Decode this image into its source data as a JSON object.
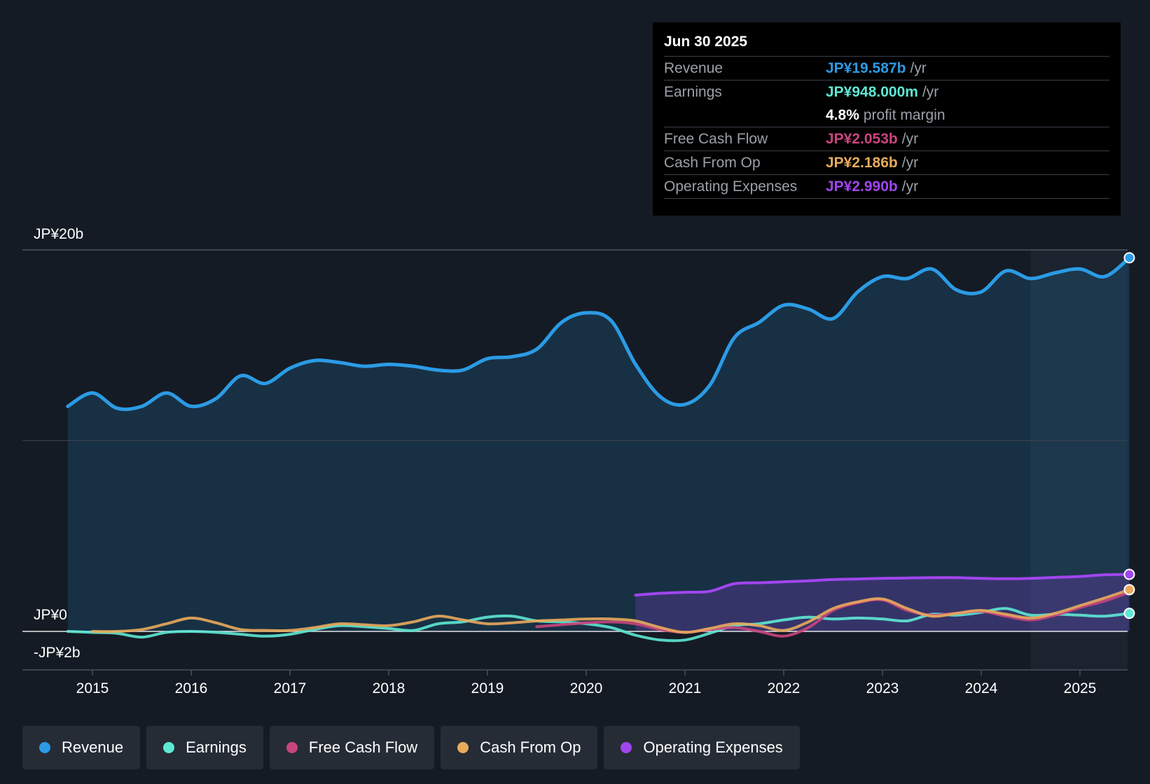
{
  "tooltip": {
    "date": "Jun 30 2025",
    "rows": [
      {
        "label": "Revenue",
        "value": "JP¥19.587b",
        "unit": "/yr",
        "color": "#2b9be5"
      },
      {
        "label": "Earnings",
        "value": "JP¥948.000m",
        "unit": "/yr",
        "color": "#5ee8d4"
      },
      {
        "label": "",
        "value": "4.8%",
        "unit": "profit margin",
        "color": "#ffffff"
      },
      {
        "label": "Free Cash Flow",
        "value": "JP¥2.053b",
        "unit": "/yr",
        "color": "#c9457e"
      },
      {
        "label": "Cash From Op",
        "value": "JP¥2.186b",
        "unit": "/yr",
        "color": "#e8aa5c"
      },
      {
        "label": "Operating Expenses",
        "value": "JP¥2.990b",
        "unit": "/yr",
        "color": "#a046ee"
      }
    ]
  },
  "legend": [
    {
      "label": "Revenue",
      "color": "#2b9be5"
    },
    {
      "label": "Earnings",
      "color": "#5ee8d4"
    },
    {
      "label": "Free Cash Flow",
      "color": "#c9457e"
    },
    {
      "label": "Cash From Op",
      "color": "#e8aa5c"
    },
    {
      "label": "Operating Expenses",
      "color": "#a046ee"
    }
  ],
  "chart_data": {
    "type": "line",
    "title": "",
    "y_labels": [
      {
        "label": "JP¥20b",
        "value": 20
      },
      {
        "label": "JP¥0",
        "value": 0
      },
      {
        "label": "-JP¥2b",
        "value": -2
      }
    ],
    "ylim": [
      -2,
      20
    ],
    "xlim": [
      2014.5,
      2025.5
    ],
    "x_ticks": [
      2015,
      2016,
      2017,
      2018,
      2019,
      2020,
      2021,
      2022,
      2023,
      2024,
      2025
    ],
    "forecast_start": 2024.5,
    "series": [
      {
        "name": "Revenue",
        "color": "#2b9be5",
        "fill": true,
        "end_marker": true,
        "points": [
          [
            2014.75,
            11.8
          ],
          [
            2015.0,
            12.5
          ],
          [
            2015.25,
            11.7
          ],
          [
            2015.5,
            11.8
          ],
          [
            2015.75,
            12.5
          ],
          [
            2016.0,
            11.8
          ],
          [
            2016.25,
            12.2
          ],
          [
            2016.5,
            13.4
          ],
          [
            2016.75,
            13.0
          ],
          [
            2017.0,
            13.8
          ],
          [
            2017.25,
            14.2
          ],
          [
            2017.5,
            14.1
          ],
          [
            2017.75,
            13.9
          ],
          [
            2018.0,
            14.0
          ],
          [
            2018.25,
            13.9
          ],
          [
            2018.5,
            13.7
          ],
          [
            2018.75,
            13.7
          ],
          [
            2019.0,
            14.3
          ],
          [
            2019.25,
            14.4
          ],
          [
            2019.5,
            14.8
          ],
          [
            2019.75,
            16.2
          ],
          [
            2020.0,
            16.7
          ],
          [
            2020.25,
            16.3
          ],
          [
            2020.5,
            14.0
          ],
          [
            2020.75,
            12.3
          ],
          [
            2021.0,
            11.9
          ],
          [
            2021.25,
            12.9
          ],
          [
            2021.5,
            15.4
          ],
          [
            2021.75,
            16.2
          ],
          [
            2022.0,
            17.1
          ],
          [
            2022.25,
            16.9
          ],
          [
            2022.5,
            16.4
          ],
          [
            2022.75,
            17.8
          ],
          [
            2023.0,
            18.6
          ],
          [
            2023.25,
            18.5
          ],
          [
            2023.5,
            19.0
          ],
          [
            2023.75,
            17.9
          ],
          [
            2024.0,
            17.8
          ],
          [
            2024.25,
            18.9
          ],
          [
            2024.5,
            18.5
          ],
          [
            2024.75,
            18.8
          ],
          [
            2025.0,
            19.0
          ],
          [
            2025.25,
            18.6
          ],
          [
            2025.5,
            19.587
          ]
        ]
      },
      {
        "name": "Operating Expenses",
        "color": "#a046ee",
        "fill": true,
        "end_marker": true,
        "points": [
          [
            2020.5,
            1.9
          ],
          [
            2020.75,
            2.0
          ],
          [
            2021.0,
            2.05
          ],
          [
            2021.25,
            2.1
          ],
          [
            2021.5,
            2.5
          ],
          [
            2021.75,
            2.55
          ],
          [
            2022.0,
            2.6
          ],
          [
            2022.25,
            2.65
          ],
          [
            2022.5,
            2.72
          ],
          [
            2022.75,
            2.75
          ],
          [
            2023.0,
            2.78
          ],
          [
            2023.25,
            2.8
          ],
          [
            2023.5,
            2.82
          ],
          [
            2023.75,
            2.82
          ],
          [
            2024.0,
            2.78
          ],
          [
            2024.25,
            2.76
          ],
          [
            2024.5,
            2.78
          ],
          [
            2024.75,
            2.83
          ],
          [
            2025.0,
            2.88
          ],
          [
            2025.25,
            2.97
          ],
          [
            2025.5,
            2.99
          ]
        ]
      },
      {
        "name": "Earnings",
        "color": "#5ee8d4",
        "fill": false,
        "end_marker": true,
        "points": [
          [
            2014.75,
            0.0
          ],
          [
            2015.0,
            -0.05
          ],
          [
            2015.25,
            -0.1
          ],
          [
            2015.5,
            -0.3
          ],
          [
            2015.75,
            -0.05
          ],
          [
            2016.0,
            0.0
          ],
          [
            2016.25,
            -0.05
          ],
          [
            2016.5,
            -0.15
          ],
          [
            2016.75,
            -0.25
          ],
          [
            2017.0,
            -0.15
          ],
          [
            2017.25,
            0.1
          ],
          [
            2017.5,
            0.3
          ],
          [
            2017.75,
            0.25
          ],
          [
            2018.0,
            0.15
          ],
          [
            2018.25,
            0.05
          ],
          [
            2018.5,
            0.4
          ],
          [
            2018.75,
            0.5
          ],
          [
            2019.0,
            0.75
          ],
          [
            2019.25,
            0.8
          ],
          [
            2019.5,
            0.55
          ],
          [
            2019.75,
            0.5
          ],
          [
            2020.0,
            0.4
          ],
          [
            2020.25,
            0.2
          ],
          [
            2020.5,
            -0.2
          ],
          [
            2020.75,
            -0.45
          ],
          [
            2021.0,
            -0.45
          ],
          [
            2021.25,
            -0.1
          ],
          [
            2021.5,
            0.3
          ],
          [
            2021.75,
            0.4
          ],
          [
            2022.0,
            0.6
          ],
          [
            2022.25,
            0.75
          ],
          [
            2022.5,
            0.65
          ],
          [
            2022.75,
            0.7
          ],
          [
            2023.0,
            0.65
          ],
          [
            2023.25,
            0.55
          ],
          [
            2023.5,
            0.9
          ],
          [
            2023.75,
            0.85
          ],
          [
            2024.0,
            1.0
          ],
          [
            2024.25,
            1.2
          ],
          [
            2024.5,
            0.85
          ],
          [
            2024.75,
            0.9
          ],
          [
            2025.0,
            0.85
          ],
          [
            2025.25,
            0.8
          ],
          [
            2025.5,
            0.948
          ]
        ]
      },
      {
        "name": "Free Cash Flow",
        "color": "#c9457e",
        "fill": false,
        "end_marker": false,
        "points": [
          [
            2019.5,
            0.25
          ],
          [
            2019.75,
            0.35
          ],
          [
            2020.0,
            0.45
          ],
          [
            2020.25,
            0.5
          ],
          [
            2020.5,
            0.4
          ],
          [
            2020.75,
            0.1
          ],
          [
            2021.0,
            -0.05
          ],
          [
            2021.25,
            0.1
          ],
          [
            2021.5,
            0.2
          ],
          [
            2021.75,
            0.0
          ],
          [
            2022.0,
            -0.25
          ],
          [
            2022.25,
            0.2
          ],
          [
            2022.5,
            1.1
          ],
          [
            2022.75,
            1.5
          ],
          [
            2023.0,
            1.65
          ],
          [
            2023.25,
            1.1
          ],
          [
            2023.5,
            0.85
          ],
          [
            2023.75,
            0.95
          ],
          [
            2024.0,
            1.05
          ],
          [
            2024.25,
            0.8
          ],
          [
            2024.5,
            0.6
          ],
          [
            2024.75,
            0.85
          ],
          [
            2025.0,
            1.25
          ],
          [
            2025.25,
            1.6
          ],
          [
            2025.5,
            2.053
          ]
        ]
      },
      {
        "name": "Cash From Op",
        "color": "#e8aa5c",
        "fill": false,
        "end_marker": true,
        "points": [
          [
            2015.0,
            0.0
          ],
          [
            2015.25,
            0.0
          ],
          [
            2015.5,
            0.1
          ],
          [
            2015.75,
            0.4
          ],
          [
            2016.0,
            0.7
          ],
          [
            2016.25,
            0.45
          ],
          [
            2016.5,
            0.1
          ],
          [
            2016.75,
            0.05
          ],
          [
            2017.0,
            0.05
          ],
          [
            2017.25,
            0.2
          ],
          [
            2017.5,
            0.4
          ],
          [
            2017.75,
            0.35
          ],
          [
            2018.0,
            0.3
          ],
          [
            2018.25,
            0.5
          ],
          [
            2018.5,
            0.8
          ],
          [
            2018.75,
            0.6
          ],
          [
            2019.0,
            0.4
          ],
          [
            2019.25,
            0.45
          ],
          [
            2019.5,
            0.55
          ],
          [
            2019.75,
            0.6
          ],
          [
            2020.0,
            0.65
          ],
          [
            2020.25,
            0.65
          ],
          [
            2020.5,
            0.55
          ],
          [
            2020.75,
            0.2
          ],
          [
            2021.0,
            -0.05
          ],
          [
            2021.25,
            0.15
          ],
          [
            2021.5,
            0.4
          ],
          [
            2021.75,
            0.3
          ],
          [
            2022.0,
            0.05
          ],
          [
            2022.25,
            0.5
          ],
          [
            2022.5,
            1.2
          ],
          [
            2022.75,
            1.55
          ],
          [
            2023.0,
            1.7
          ],
          [
            2023.25,
            1.2
          ],
          [
            2023.5,
            0.8
          ],
          [
            2023.75,
            0.95
          ],
          [
            2024.0,
            1.1
          ],
          [
            2024.25,
            0.9
          ],
          [
            2024.5,
            0.7
          ],
          [
            2024.75,
            0.95
          ],
          [
            2025.0,
            1.35
          ],
          [
            2025.25,
            1.75
          ],
          [
            2025.5,
            2.186
          ]
        ]
      }
    ]
  }
}
